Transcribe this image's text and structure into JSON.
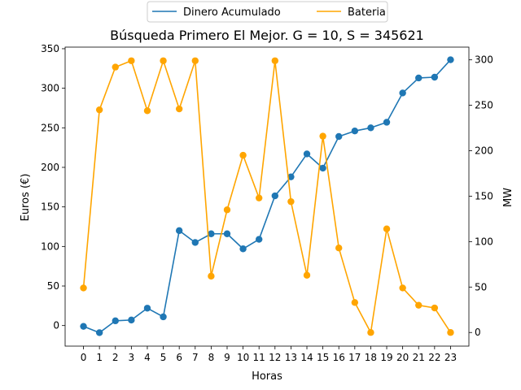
{
  "chart_data": {
    "type": "line",
    "title": "Búsqueda Primero El Mejor. G = 10, S = 345621",
    "xlabel": "Horas",
    "ylabel": "Euros (€)",
    "y2label": "MW",
    "x": [
      0,
      1,
      2,
      3,
      4,
      5,
      6,
      7,
      8,
      9,
      10,
      11,
      12,
      13,
      14,
      15,
      16,
      17,
      18,
      19,
      20,
      21,
      22,
      23
    ],
    "xlim": [
      -1.15,
      24.15
    ],
    "ylim": [
      -26,
      352
    ],
    "y2lim": [
      -15,
      314
    ],
    "yticks": [
      0,
      50,
      100,
      150,
      200,
      250,
      300,
      350
    ],
    "y2ticks": [
      0,
      50,
      100,
      150,
      200,
      250,
      300
    ],
    "legend_position": "top-center",
    "grid": false,
    "series": [
      {
        "name": "Dinero Acumulado",
        "axis": "left",
        "color": "#1f77b4",
        "values": [
          -1,
          -9,
          6,
          7,
          22,
          11,
          120,
          105,
          116,
          116,
          97,
          109,
          164,
          188,
          217,
          199,
          239,
          246,
          250,
          257,
          294,
          313,
          314,
          336
        ]
      },
      {
        "name": "Bateria",
        "axis": "right",
        "color": "#ffa500",
        "values": [
          49,
          245,
          292,
          299,
          244,
          299,
          246,
          299,
          62,
          135,
          195,
          148,
          299,
          144,
          63,
          216,
          93,
          33,
          0,
          114,
          49,
          30,
          27,
          0
        ]
      }
    ]
  }
}
